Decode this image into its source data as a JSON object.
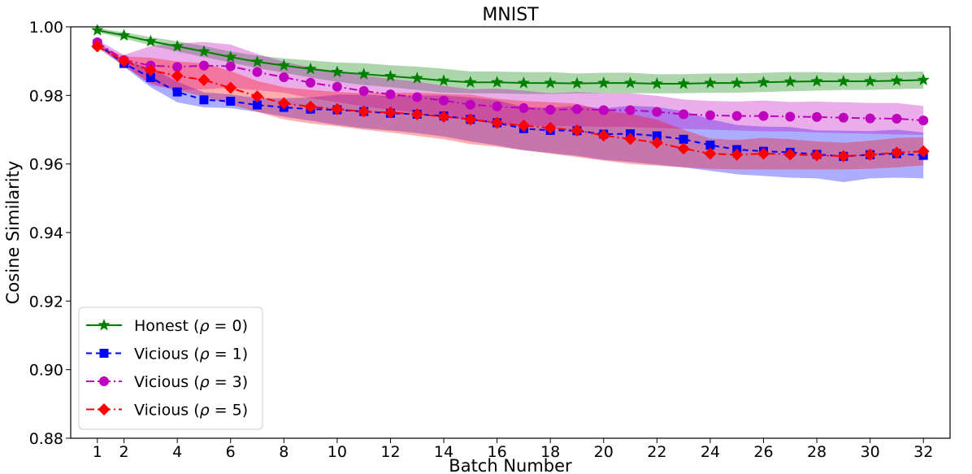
{
  "chart_data": {
    "type": "line",
    "title": "MNIST",
    "xlabel": "Batch Number",
    "ylabel": "Cosine Similarity",
    "xlim": [
      0,
      33
    ],
    "ylim": [
      0.88,
      1.0
    ],
    "x_ticks": [
      1,
      2,
      4,
      6,
      8,
      10,
      12,
      14,
      16,
      18,
      20,
      22,
      24,
      26,
      28,
      30,
      32
    ],
    "y_ticks": [
      0.88,
      0.9,
      0.92,
      0.94,
      0.96,
      0.98,
      1.0
    ],
    "y_tick_labels": [
      "0.88",
      "0.90",
      "0.92",
      "0.94",
      "0.96",
      "0.98",
      "1.00"
    ],
    "grid": false,
    "legend_position": "lower-left",
    "x": [
      1,
      2,
      3,
      4,
      5,
      6,
      7,
      8,
      9,
      10,
      11,
      12,
      13,
      14,
      15,
      16,
      17,
      18,
      19,
      20,
      21,
      22,
      23,
      24,
      25,
      26,
      27,
      28,
      29,
      30,
      31,
      32
    ],
    "series": [
      {
        "name": "Honest (ρ = 0)",
        "legend_prefix": "Honest (",
        "legend_rho": "ρ",
        "legend_suffix": " = 0)",
        "color": "#008000",
        "marker": "star",
        "line": "solid",
        "values": [
          0.999,
          0.9975,
          0.9958,
          0.9943,
          0.9928,
          0.9912,
          0.9898,
          0.9887,
          0.9877,
          0.9868,
          0.9862,
          0.9856,
          0.985,
          0.9843,
          0.9838,
          0.9838,
          0.9836,
          0.9836,
          0.9835,
          0.9836,
          0.9836,
          0.9834,
          0.9834,
          0.9836,
          0.9836,
          0.9838,
          0.984,
          0.9841,
          0.9841,
          0.9841,
          0.9843,
          0.9845
        ],
        "lower": [
          0.9984,
          0.9966,
          0.9946,
          0.9928,
          0.9912,
          0.9896,
          0.988,
          0.9866,
          0.9852,
          0.984,
          0.983,
          0.9824,
          0.9816,
          0.9808,
          0.9806,
          0.9806,
          0.9804,
          0.9804,
          0.9806,
          0.9806,
          0.9806,
          0.9806,
          0.9806,
          0.9808,
          0.9808,
          0.981,
          0.9812,
          0.9814,
          0.9816,
          0.9816,
          0.9818,
          0.982
        ],
        "upper": [
          0.9996,
          0.9984,
          0.997,
          0.9958,
          0.9944,
          0.9928,
          0.9916,
          0.9908,
          0.9902,
          0.9896,
          0.9894,
          0.9888,
          0.9884,
          0.9878,
          0.987,
          0.987,
          0.9868,
          0.9868,
          0.9864,
          0.9866,
          0.9866,
          0.9862,
          0.9862,
          0.9864,
          0.9864,
          0.9866,
          0.9868,
          0.9868,
          0.9866,
          0.9866,
          0.9868,
          0.987
        ]
      },
      {
        "name": "Vicious (ρ = 1)",
        "legend_prefix": "Vicious (",
        "legend_rho": "ρ",
        "legend_suffix": " = 1)",
        "color": "#0000ff",
        "marker": "square",
        "line": "dashed",
        "values": [
          0.995,
          0.9893,
          0.9852,
          0.981,
          0.9787,
          0.9783,
          0.9772,
          0.9765,
          0.976,
          0.9758,
          0.9753,
          0.9748,
          0.9745,
          0.974,
          0.973,
          0.972,
          0.9703,
          0.9698,
          0.9697,
          0.9687,
          0.9688,
          0.9682,
          0.9672,
          0.9655,
          0.9642,
          0.9637,
          0.9634,
          0.9628,
          0.9622,
          0.9627,
          0.963,
          0.9625
        ],
        "lower": [
          0.9944,
          0.9884,
          0.9824,
          0.978,
          0.9765,
          0.9763,
          0.9752,
          0.9738,
          0.9726,
          0.9714,
          0.9704,
          0.9698,
          0.969,
          0.968,
          0.9666,
          0.9654,
          0.964,
          0.9632,
          0.9624,
          0.9612,
          0.9606,
          0.9598,
          0.959,
          0.958,
          0.957,
          0.9565,
          0.956,
          0.9558,
          0.9547,
          0.9558,
          0.956,
          0.9558
        ],
        "upper": [
          0.9956,
          0.9902,
          0.988,
          0.984,
          0.9809,
          0.9803,
          0.9792,
          0.9792,
          0.9794,
          0.9802,
          0.9802,
          0.9798,
          0.98,
          0.98,
          0.9794,
          0.9786,
          0.9766,
          0.9764,
          0.977,
          0.9762,
          0.977,
          0.9766,
          0.9754,
          0.973,
          0.9714,
          0.9709,
          0.9708,
          0.9698,
          0.9697,
          0.9696,
          0.97,
          0.9692
        ]
      },
      {
        "name": "Vicious (ρ = 3)",
        "legend_prefix": "Vicious (",
        "legend_rho": "ρ",
        "legend_suffix": " = 3)",
        "color": "#bf00bf",
        "marker": "circle",
        "line": "dashdot",
        "values": [
          0.9955,
          0.9903,
          0.9887,
          0.9883,
          0.9887,
          0.9885,
          0.9868,
          0.9853,
          0.9837,
          0.9825,
          0.9813,
          0.9803,
          0.9795,
          0.9785,
          0.9773,
          0.9768,
          0.9763,
          0.9758,
          0.976,
          0.9757,
          0.9757,
          0.9752,
          0.9745,
          0.9742,
          0.974,
          0.974,
          0.9738,
          0.9737,
          0.9735,
          0.9733,
          0.9732,
          0.9727
        ],
        "lower": [
          0.9948,
          0.9888,
          0.983,
          0.9815,
          0.9818,
          0.9822,
          0.9815,
          0.9808,
          0.9792,
          0.978,
          0.9768,
          0.9758,
          0.975,
          0.9742,
          0.9728,
          0.9716,
          0.9712,
          0.971,
          0.971,
          0.9708,
          0.9708,
          0.9705,
          0.9702,
          0.97,
          0.9698,
          0.9695,
          0.9695,
          0.9692,
          0.969,
          0.9688,
          0.9686,
          0.9685
        ],
        "upper": [
          0.9962,
          0.9918,
          0.9944,
          0.9951,
          0.9956,
          0.9948,
          0.9921,
          0.9898,
          0.9882,
          0.987,
          0.9858,
          0.9848,
          0.984,
          0.9828,
          0.9818,
          0.982,
          0.9814,
          0.9806,
          0.981,
          0.9806,
          0.9806,
          0.9799,
          0.9788,
          0.9784,
          0.9782,
          0.9785,
          0.9781,
          0.9782,
          0.978,
          0.9778,
          0.9778,
          0.9769
        ]
      },
      {
        "name": "Vicious (ρ = 5)",
        "legend_prefix": "Vicious (",
        "legend_rho": "ρ",
        "legend_suffix": " = 5)",
        "color": "#ff0000",
        "marker": "diamond",
        "line": "dashdot",
        "values": [
          0.9943,
          0.99,
          0.9873,
          0.9857,
          0.9845,
          0.9822,
          0.9797,
          0.9777,
          0.9767,
          0.976,
          0.9753,
          0.975,
          0.9745,
          0.9738,
          0.973,
          0.972,
          0.9712,
          0.9705,
          0.9698,
          0.9683,
          0.9673,
          0.9662,
          0.9645,
          0.963,
          0.9627,
          0.963,
          0.9628,
          0.9625,
          0.9623,
          0.9627,
          0.9633,
          0.9637
        ],
        "lower": [
          0.9938,
          0.9886,
          0.9836,
          0.9815,
          0.9796,
          0.9773,
          0.9752,
          0.973,
          0.9718,
          0.971,
          0.97,
          0.9692,
          0.9682,
          0.9672,
          0.9658,
          0.965,
          0.964,
          0.963,
          0.962,
          0.961,
          0.96,
          0.9595,
          0.959,
          0.9586,
          0.9584,
          0.9584,
          0.9584,
          0.9584,
          0.9584,
          0.9586,
          0.959,
          0.9596
        ],
        "upper": [
          0.9948,
          0.9914,
          0.991,
          0.9899,
          0.9894,
          0.9871,
          0.9842,
          0.9824,
          0.9816,
          0.981,
          0.9806,
          0.9808,
          0.9808,
          0.9804,
          0.9802,
          0.979,
          0.9784,
          0.978,
          0.9776,
          0.9756,
          0.9746,
          0.9729,
          0.97,
          0.9674,
          0.967,
          0.9676,
          0.9672,
          0.9666,
          0.9662,
          0.9668,
          0.9676,
          0.9678
        ]
      }
    ]
  }
}
